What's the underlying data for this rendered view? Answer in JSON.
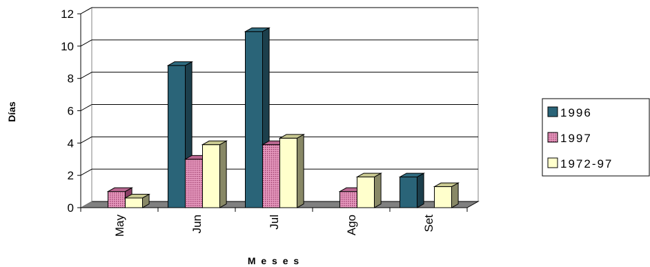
{
  "chart_data": {
    "type": "bar",
    "title": "",
    "xlabel": "M e s e s",
    "ylabel": "Días",
    "categories": [
      "May",
      "Jun",
      "Jul",
      "Ago",
      "Set"
    ],
    "series": [
      {
        "name": "1996",
        "values": [
          0,
          8.8,
          10.9,
          0,
          1.9
        ],
        "color": "#2a6478",
        "pattern": "solid"
      },
      {
        "name": "1997",
        "values": [
          1.0,
          3.0,
          3.9,
          1.0,
          0
        ],
        "color": "#c86a96",
        "pattern": "dots"
      },
      {
        "name": "1972-97",
        "values": [
          0.6,
          3.9,
          4.3,
          1.9,
          1.3
        ],
        "color": "#ffffcc",
        "pattern": "solid"
      }
    ],
    "ylim": [
      0,
      12
    ],
    "yticks": [
      0,
      2,
      4,
      6,
      8,
      10,
      12
    ],
    "grid": true,
    "legend_position": "right",
    "style": "3d-column"
  }
}
